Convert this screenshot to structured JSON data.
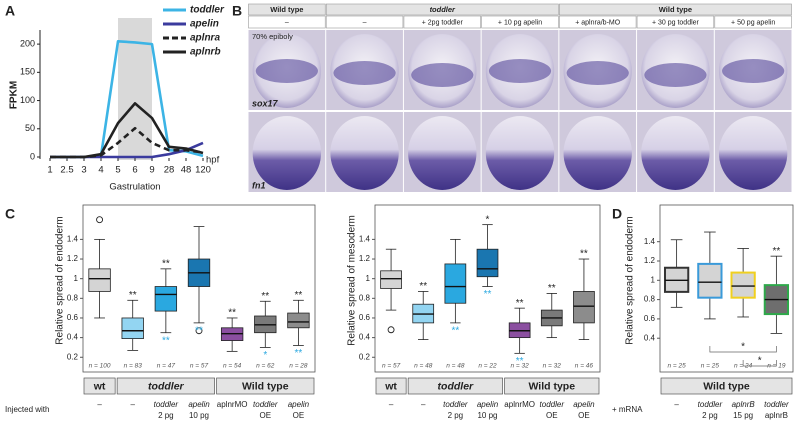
{
  "panel_labels": [
    "A",
    "B",
    "C",
    "D"
  ],
  "panel_b": {
    "groups": [
      "Wild type",
      "toddler",
      "Wild type"
    ],
    "conditions": [
      "–",
      "–",
      "+ 2pg toddler",
      "+ 10 pg apelin",
      "+ aplnra/b-MO",
      "+ 30 pg toddler",
      "+ 50 pg apelin"
    ],
    "rows": [
      "sox17",
      "fn1"
    ],
    "stage": "70% epiboly"
  },
  "chart_data": [
    {
      "type": "line",
      "ylabel": "FPKM",
      "xlabel": "hpf",
      "categories": [
        "1",
        "2.5",
        "3",
        "4",
        "5",
        "6",
        "9",
        "28",
        "48",
        "120"
      ],
      "ylim": [
        0,
        225
      ],
      "yticks": [
        0,
        50,
        100,
        150,
        200
      ],
      "shade": {
        "label": "Gastrulation",
        "from": "5",
        "to": "9",
        "color": "#d9d9d9"
      },
      "series": [
        {
          "name": "toddler",
          "color": "#3cb4e5",
          "style": "solid",
          "values": [
            0,
            0,
            0,
            2,
            205,
            203,
            200,
            12,
            10,
            2
          ]
        },
        {
          "name": "apelin",
          "color": "#3b3b9e",
          "style": "solid",
          "values": [
            0,
            0,
            0,
            0,
            0,
            0,
            0,
            5,
            12,
            25
          ]
        },
        {
          "name": "aplnra",
          "color": "#222222",
          "style": "dashed",
          "values": [
            0,
            0,
            0,
            3,
            25,
            51,
            25,
            12,
            12,
            8
          ]
        },
        {
          "name": "aplnrb",
          "color": "#222222",
          "style": "solid",
          "values": [
            0,
            0,
            0,
            5,
            60,
            95,
            69,
            18,
            15,
            7
          ]
        }
      ]
    },
    {
      "type": "box",
      "ylabel": "Relative spread of endoderm",
      "row_label": "Injected with",
      "ylim": [
        0.05,
        1.75
      ],
      "yticks": [
        0.2,
        0.4,
        0.6,
        0.8,
        1,
        1.2,
        1.4
      ],
      "groups": [
        "wt",
        "toddler",
        "Wild type"
      ],
      "categories": [
        [
          "–"
        ],
        [
          "–"
        ],
        [
          "toddler",
          "2 pg"
        ],
        [
          "apelin",
          "10 pg"
        ],
        [
          "aplnrMO"
        ],
        [
          "toddler",
          "OE"
        ],
        [
          "apelin",
          "OE"
        ]
      ],
      "boxes": [
        {
          "whisker_low": 0.6,
          "q1": 0.87,
          "median": 1.0,
          "q3": 1.1,
          "whisker_high": 1.4,
          "outliers": [
            1.6
          ],
          "color": "#d4d4d4",
          "stroke": "#222222",
          "n_label": "n = 100",
          "above": "",
          "below": ""
        },
        {
          "whisker_low": 0.27,
          "q1": 0.39,
          "median": 0.47,
          "q3": 0.6,
          "whisker_high": 0.78,
          "outliers": [],
          "color": "#93d5f2",
          "stroke": "#222222",
          "n_label": "n = 83",
          "above": "**",
          "below": ""
        },
        {
          "whisker_low": 0.45,
          "q1": 0.67,
          "median": 0.84,
          "q3": 0.92,
          "whisker_high": 1.1,
          "outliers": [],
          "color": "#2aa8e0",
          "stroke": "#222222",
          "n_label": "n = 47",
          "above": "**",
          "below": "**"
        },
        {
          "whisker_low": 0.55,
          "q1": 0.92,
          "median": 1.06,
          "q3": 1.2,
          "whisker_high": 1.53,
          "outliers": [
            0.47
          ],
          "color": "#1a76b0",
          "stroke": "#222222",
          "n_label": "n = 57",
          "above": "",
          "below": "**"
        },
        {
          "whisker_low": 0.26,
          "q1": 0.37,
          "median": 0.44,
          "q3": 0.5,
          "whisker_high": 0.6,
          "outliers": [],
          "color": "#8b4fa0",
          "stroke": "#222222",
          "n_label": "n = 54",
          "above": "**",
          "below": ""
        },
        {
          "whisker_low": 0.3,
          "q1": 0.45,
          "median": 0.53,
          "q3": 0.62,
          "whisker_high": 0.77,
          "outliers": [],
          "color": "#7a7a7a",
          "stroke": "#222222",
          "n_label": "n = 62",
          "above": "**",
          "below": "*"
        },
        {
          "whisker_low": 0.32,
          "q1": 0.5,
          "median": 0.56,
          "q3": 0.65,
          "whisker_high": 0.78,
          "outliers": [],
          "color": "#8c8c8c",
          "stroke": "#222222",
          "n_label": "n = 28",
          "above": "**",
          "below": "**"
        }
      ]
    },
    {
      "type": "box",
      "ylabel": "Relative spread of mesoderm",
      "ylim": [
        0.05,
        1.75
      ],
      "yticks": [
        0.2,
        0.4,
        0.6,
        0.8,
        1,
        1.2,
        1.4
      ],
      "groups": [
        "wt",
        "toddler",
        "Wild type"
      ],
      "categories": [
        [
          "–"
        ],
        [
          "–"
        ],
        [
          "toddler",
          "2 pg"
        ],
        [
          "apelin",
          "10 pg"
        ],
        [
          "aplnrMO"
        ],
        [
          "toddler",
          "OE"
        ],
        [
          "apelin",
          "OE"
        ]
      ],
      "boxes": [
        {
          "whisker_low": 0.68,
          "q1": 0.9,
          "median": 1.0,
          "q3": 1.08,
          "whisker_high": 1.3,
          "outliers": [
            0.48
          ],
          "color": "#d4d4d4",
          "stroke": "#222222",
          "n_label": "n = 57",
          "above": "",
          "below": ""
        },
        {
          "whisker_low": 0.38,
          "q1": 0.55,
          "median": 0.64,
          "q3": 0.74,
          "whisker_high": 0.87,
          "outliers": [],
          "color": "#93d5f2",
          "stroke": "#222222",
          "n_label": "n = 48",
          "above": "**",
          "below": ""
        },
        {
          "whisker_low": 0.55,
          "q1": 0.75,
          "median": 0.92,
          "q3": 1.15,
          "whisker_high": 1.4,
          "outliers": [],
          "color": "#2aa8e0",
          "stroke": "#222222",
          "n_label": "n = 48",
          "above": "",
          "below": "**"
        },
        {
          "whisker_low": 0.92,
          "q1": 1.02,
          "median": 1.1,
          "q3": 1.3,
          "whisker_high": 1.55,
          "outliers": [],
          "color": "#1a76b0",
          "stroke": "#222222",
          "n_label": "n = 22",
          "above": "*",
          "below": "**"
        },
        {
          "whisker_low": 0.24,
          "q1": 0.4,
          "median": 0.47,
          "q3": 0.55,
          "whisker_high": 0.7,
          "outliers": [],
          "color": "#8b4fa0",
          "stroke": "#222222",
          "n_label": "n = 32",
          "above": "**",
          "below": "**"
        },
        {
          "whisker_low": 0.4,
          "q1": 0.52,
          "median": 0.6,
          "q3": 0.68,
          "whisker_high": 0.85,
          "outliers": [],
          "color": "#7a7a7a",
          "stroke": "#222222",
          "n_label": "n = 32",
          "above": "**",
          "below": ""
        },
        {
          "whisker_low": 0.38,
          "q1": 0.55,
          "median": 0.72,
          "q3": 0.87,
          "whisker_high": 1.2,
          "outliers": [],
          "color": "#8c8c8c",
          "stroke": "#222222",
          "n_label": "n = 46",
          "above": "**",
          "below": ""
        }
      ]
    },
    {
      "type": "box",
      "ylabel": "Relative spread of endoderm",
      "row_label": "+ mRNA",
      "ylim": [
        0.05,
        1.78
      ],
      "yticks": [
        0.4,
        0.6,
        0.8,
        1,
        1.2,
        1.4
      ],
      "groups": [
        "Wild type"
      ],
      "categories": [
        [
          "–"
        ],
        [
          "toddler",
          "2 pg"
        ],
        [
          "aplnrB",
          "15 pg"
        ],
        [
          "toddler",
          "aplnrB"
        ]
      ],
      "bracket_labels": [
        "*",
        "*"
      ],
      "boxes": [
        {
          "whisker_low": 0.72,
          "q1": 0.88,
          "median": 1.0,
          "q3": 1.13,
          "whisker_high": 1.42,
          "outliers": [],
          "color": "#d4d4d4",
          "stroke": "#333333",
          "n_label": "n = 25",
          "above": "",
          "below": ""
        },
        {
          "whisker_low": 0.6,
          "q1": 0.82,
          "median": 0.98,
          "q3": 1.17,
          "whisker_high": 1.5,
          "outliers": [],
          "color": "#d4d4d4",
          "stroke": "#3a9ad9",
          "n_label": "n = 25",
          "above": "",
          "below": ""
        },
        {
          "whisker_low": 0.62,
          "q1": 0.82,
          "median": 0.94,
          "q3": 1.08,
          "whisker_high": 1.33,
          "outliers": [],
          "color": "#d4d4d4",
          "stroke": "#f0d020",
          "n_label": "n = 24",
          "above": "",
          "below": ""
        },
        {
          "whisker_low": 0.45,
          "q1": 0.65,
          "median": 0.8,
          "q3": 0.95,
          "whisker_high": 1.25,
          "outliers": [],
          "color": "#6e6e6e",
          "stroke": "#2ea84a",
          "n_label": "n = 19",
          "above": "**",
          "below": ""
        }
      ]
    }
  ]
}
